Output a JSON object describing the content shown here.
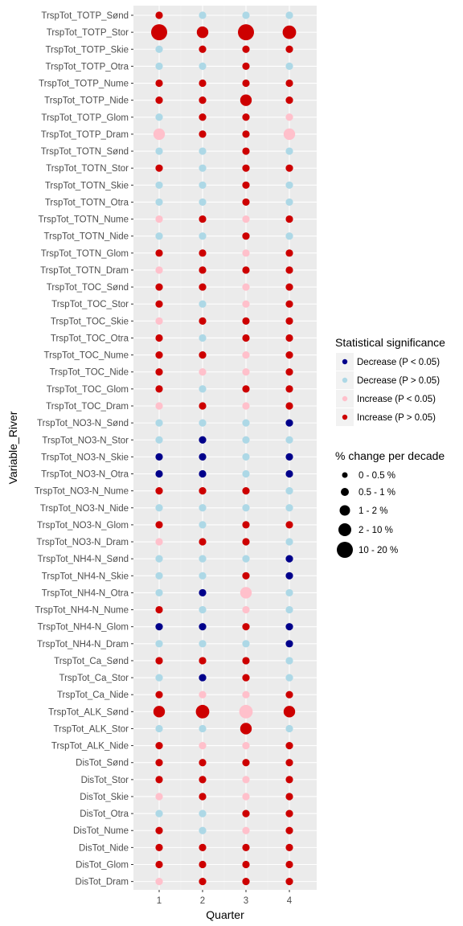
{
  "chart_data": {
    "type": "scatter",
    "xlabel": "Quarter",
    "ylabel": "Variable_River",
    "x_categories": [
      "1",
      "2",
      "3",
      "4"
    ],
    "y_categories": [
      "TrspTot_TOTP_Sønd",
      "TrspTot_TOTP_Stor",
      "TrspTot_TOTP_Skie",
      "TrspTot_TOTP_Otra",
      "TrspTot_TOTP_Nume",
      "TrspTot_TOTP_Nide",
      "TrspTot_TOTP_Glom",
      "TrspTot_TOTP_Dram",
      "TrspTot_TOTN_Sønd",
      "TrspTot_TOTN_Stor",
      "TrspTot_TOTN_Skie",
      "TrspTot_TOTN_Otra",
      "TrspTot_TOTN_Nume",
      "TrspTot_TOTN_Nide",
      "TrspTot_TOTN_Glom",
      "TrspTot_TOTN_Dram",
      "TrspTot_TOC_Sønd",
      "TrspTot_TOC_Stor",
      "TrspTot_TOC_Skie",
      "TrspTot_TOC_Otra",
      "TrspTot_TOC_Nume",
      "TrspTot_TOC_Nide",
      "TrspTot_TOC_Glom",
      "TrspTot_TOC_Dram",
      "TrspTot_NO3-N_Sønd",
      "TrspTot_NO3-N_Stor",
      "TrspTot_NO3-N_Skie",
      "TrspTot_NO3-N_Otra",
      "TrspTot_NO3-N_Nume",
      "TrspTot_NO3-N_Nide",
      "TrspTot_NO3-N_Glom",
      "TrspTot_NO3-N_Dram",
      "TrspTot_NH4-N_Sønd",
      "TrspTot_NH4-N_Skie",
      "TrspTot_NH4-N_Otra",
      "TrspTot_NH4-N_Nume",
      "TrspTot_NH4-N_Glom",
      "TrspTot_NH4-N_Dram",
      "TrspTot_Ca_Sønd",
      "TrspTot_Ca_Stor",
      "TrspTot_Ca_Nide",
      "TrspTot_ALK_Sønd",
      "TrspTot_ALK_Stor",
      "TrspTot_ALK_Nide",
      "DisTot_Sønd",
      "DisTot_Stor",
      "DisTot_Skie",
      "DisTot_Otra",
      "DisTot_Nume",
      "DisTot_Nide",
      "DisTot_Glom",
      "DisTot_Dram"
    ],
    "legend": {
      "position": "right",
      "color_title": "Statistical significance",
      "color_levels": [
        {
          "label": "Decrease (P < 0.05)",
          "color": "#00008b"
        },
        {
          "label": "Decrease (P > 0.05)",
          "color": "#add8e6"
        },
        {
          "label": "Increase (P < 0.05)",
          "color": "#ffc0cb"
        },
        {
          "label": "Increase (P > 0.05)",
          "color": "#cd0000"
        }
      ],
      "size_title": "% change per decade",
      "size_levels": [
        "0 - 0.5 %",
        "0.5 - 1 %",
        "1 - 2 %",
        "2 - 10 %",
        "10 - 20 %"
      ]
    },
    "grid": true,
    "points_by_row": [
      [
        "IP,1",
        "DP,1",
        "DP,1",
        "DP,1"
      ],
      [
        "IP,5",
        "IP,3",
        "IP,5",
        "IP,4"
      ],
      [
        "DP,1",
        "IP,1",
        "IP,1",
        "IP,1"
      ],
      [
        "DP,1",
        "DP,1",
        "IP,1",
        "DP,1"
      ],
      [
        "IP,1",
        "IP,1",
        "IP,1",
        "IP,1"
      ],
      [
        "IP,1",
        "IP,1",
        "IP,3",
        "IP,1"
      ],
      [
        "DP,1",
        "IP,1",
        "IP,1",
        "IS,1"
      ],
      [
        "IS,3",
        "IP,1",
        "IP,1",
        "IS,3"
      ],
      [
        "DP,1",
        "DP,1",
        "IP,1",
        "DP,1"
      ],
      [
        "IP,1",
        "DP,1",
        "IP,1",
        "IP,1"
      ],
      [
        "DP,1",
        "DP,1",
        "IP,1",
        "DP,1"
      ],
      [
        "DP,1",
        "DP,1",
        "IP,1",
        "DP,1"
      ],
      [
        "IS,1",
        "IP,1",
        "IS,1",
        "IP,1"
      ],
      [
        "DP,1",
        "DP,1",
        "IP,1",
        "DP,1"
      ],
      [
        "IP,1",
        "IP,1",
        "IS,1",
        "IP,1"
      ],
      [
        "IS,1",
        "IP,1",
        "IP,1",
        "IP,1"
      ],
      [
        "IP,1",
        "IP,1",
        "IS,1",
        "IP,1"
      ],
      [
        "IP,1",
        "DP,1",
        "IS,1",
        "IP,1"
      ],
      [
        "IS,1",
        "IP,1",
        "IP,1",
        "IP,1"
      ],
      [
        "IP,1",
        "DP,1",
        "IP,1",
        "IP,1"
      ],
      [
        "IP,1",
        "IP,1",
        "IS,1",
        "IP,1"
      ],
      [
        "IP,1",
        "IS,1",
        "IS,1",
        "IP,1"
      ],
      [
        "IP,1",
        "DP,1",
        "IP,1",
        "IP,1"
      ],
      [
        "IS,1",
        "IP,1",
        "IS,1",
        "IP,1"
      ],
      [
        "DP,1",
        "DP,1",
        "DP,1",
        "DS,1"
      ],
      [
        "DP,1",
        "DS,1",
        "DP,1",
        "DP,1"
      ],
      [
        "DS,1",
        "DS,1",
        "DP,1",
        "DS,1"
      ],
      [
        "DS,1",
        "DS,1",
        "DP,1",
        "DS,1"
      ],
      [
        "IP,1",
        "IP,1",
        "IP,1",
        "DP,1"
      ],
      [
        "DP,1",
        "DP,1",
        "DP,1",
        "DP,1"
      ],
      [
        "IP,1",
        "DP,1",
        "IP,1",
        "IP,1"
      ],
      [
        "IS,1",
        "IP,1",
        "IP,1",
        "DP,1"
      ],
      [
        "DP,1",
        "DP,1",
        "DP,1",
        "DS,1"
      ],
      [
        "DP,1",
        "DP,1",
        "IP,1",
        "DS,1"
      ],
      [
        "DP,1",
        "DS,1",
        "IS,3",
        "DP,1"
      ],
      [
        "IP,1",
        "DP,1",
        "IS,1",
        "DP,1"
      ],
      [
        "DS,1",
        "DS,1",
        "IP,1",
        "DS,1"
      ],
      [
        "DP,1",
        "DP,1",
        "DP,1",
        "DS,1"
      ],
      [
        "IP,1",
        "IP,1",
        "IP,1",
        "DP,1"
      ],
      [
        "DP,1",
        "DS,1",
        "IP,1",
        "DP,1"
      ],
      [
        "IP,1",
        "IS,1",
        "IS,1",
        "IP,1"
      ],
      [
        "IP,3",
        "IP,4",
        "IS,4",
        "IP,3"
      ],
      [
        "DP,1",
        "DP,1",
        "IP,3",
        "DP,1"
      ],
      [
        "IP,1",
        "IS,1",
        "IS,1",
        "IP,1"
      ],
      [
        "IP,1",
        "IP,1",
        "IP,1",
        "IP,1"
      ],
      [
        "IP,1",
        "IP,1",
        "IS,1",
        "IP,1"
      ],
      [
        "IS,1",
        "IP,1",
        "IS,1",
        "IP,1"
      ],
      [
        "DP,1",
        "DP,1",
        "IP,1",
        "IP,1"
      ],
      [
        "IP,1",
        "DP,1",
        "IS,1",
        "IP,1"
      ],
      [
        "IP,1",
        "IP,1",
        "IP,1",
        "IP,1"
      ],
      [
        "IP,1",
        "IP,1",
        "IP,1",
        "IP,1"
      ],
      [
        "IS,1",
        "IP,1",
        "IP,1",
        "IP,1"
      ]
    ],
    "point_code_key": {
      "DS": "Decrease (P < 0.05)",
      "DP": "Decrease (P > 0.05)",
      "IS": "Increase (P < 0.05)",
      "IP": "Increase (P > 0.05)",
      "size_index": "1 = 0 - 0.5 %, 2 = 0.5 - 1 %, 3 = 1 - 2 %, 4 = 2 - 10 %, 5 = 10 - 20 %"
    }
  }
}
